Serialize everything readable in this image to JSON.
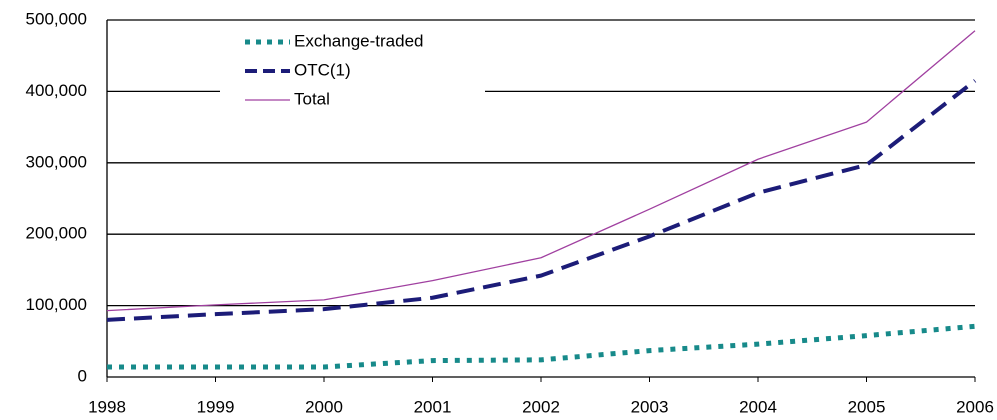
{
  "chart_data": {
    "type": "line",
    "x": [
      1998,
      1999,
      2000,
      2001,
      2002,
      2003,
      2004,
      2005,
      2006
    ],
    "xlim": [
      1998,
      2006
    ],
    "xticks": [
      1998,
      1999,
      2000,
      2001,
      2002,
      2003,
      2004,
      2005,
      2006
    ],
    "ylim": [
      0,
      500000
    ],
    "yticks": [
      0,
      {
        "value": 100000,
        "label": "100,000"
      },
      {
        "value": 200000,
        "label": "200,000"
      },
      {
        "value": 300000,
        "label": "300,000"
      },
      {
        "value": 400000,
        "label": "400,000"
      },
      {
        "value": 500000,
        "label": "500,000"
      }
    ],
    "grid": true,
    "legend": "upper left",
    "series": [
      {
        "name": "Exchange-traded",
        "color": "#178a8a",
        "style": "dotted",
        "values": [
          14000,
          14000,
          14000,
          23000,
          24000,
          37000,
          46000,
          58000,
          71000
        ]
      },
      {
        "name": "OTC(1)",
        "color": "#1c1c78",
        "style": "dashed",
        "values": [
          80000,
          88000,
          95000,
          111000,
          142000,
          197000,
          258000,
          297000,
          415000
        ]
      },
      {
        "name": "Total",
        "color": "#a040a0",
        "style": "solid",
        "values": [
          93000,
          101000,
          108000,
          135000,
          167000,
          235000,
          305000,
          357000,
          485000
        ]
      }
    ]
  }
}
